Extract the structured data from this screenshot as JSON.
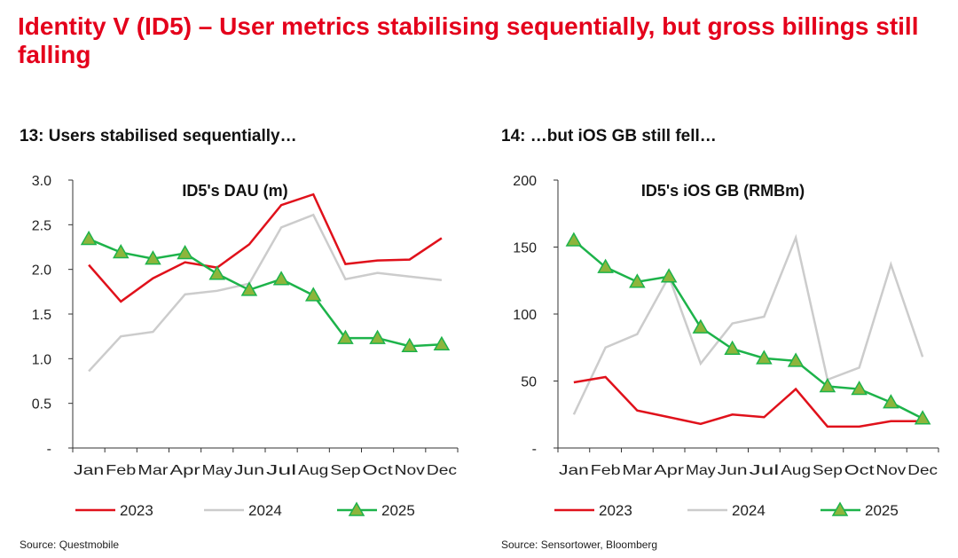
{
  "title": "Identity V (ID5) – User metrics stabilising sequentially, but gross billings still falling",
  "colors": {
    "2023": "#e0111b",
    "2024": "#cccccc",
    "2025": "#1db34a",
    "marker": "#8db53c"
  },
  "chart_data": [
    {
      "type": "line",
      "subtitle": "13: Users stabilised sequentially…",
      "title": "ID5's DAU (m)",
      "source": "Source: Questmobile",
      "categories": [
        "Jan",
        "Feb",
        "Mar",
        "Apr",
        "May",
        "Jun",
        "Jul",
        "Aug",
        "Sep",
        "Oct",
        "Nov",
        "Dec"
      ],
      "ylim": [
        0,
        3
      ],
      "yticks": [
        "-",
        "0.5",
        "1.0",
        "1.5",
        "2.0",
        "2.5",
        "3.0"
      ],
      "series": [
        {
          "name": "2023",
          "values": [
            2.05,
            1.64,
            1.9,
            2.08,
            2.02,
            2.28,
            2.72,
            2.84,
            2.06,
            2.1,
            2.11,
            2.35
          ]
        },
        {
          "name": "2024",
          "values": [
            0.86,
            1.25,
            1.3,
            1.72,
            1.76,
            1.84,
            2.47,
            2.61,
            1.89,
            1.96,
            1.92,
            1.88
          ]
        },
        {
          "name": "2025",
          "values": [
            2.34,
            2.19,
            2.12,
            2.18,
            1.95,
            1.77,
            1.89,
            1.71,
            1.23,
            1.23,
            1.14,
            1.16
          ]
        }
      ]
    },
    {
      "type": "line",
      "subtitle": "14: …but iOS GB still fell…",
      "title": "ID5's iOS GB (RMBm)",
      "source": "Source: Sensortower, Bloomberg",
      "categories": [
        "Jan",
        "Feb",
        "Mar",
        "Apr",
        "May",
        "Jun",
        "Jul",
        "Aug",
        "Sep",
        "Oct",
        "Nov",
        "Dec"
      ],
      "ylim": [
        0,
        200
      ],
      "yticks": [
        "-",
        "50",
        "100",
        "150",
        "200"
      ],
      "series": [
        {
          "name": "2023",
          "values": [
            49,
            53,
            28,
            23,
            18,
            25,
            23,
            44,
            16,
            16,
            20,
            20
          ]
        },
        {
          "name": "2024",
          "values": [
            25,
            75,
            85,
            128,
            63,
            93,
            98,
            157,
            51,
            60,
            137,
            68
          ]
        },
        {
          "name": "2025",
          "values": [
            155,
            135,
            124,
            128,
            90,
            74,
            67,
            65,
            46,
            44,
            34,
            22
          ]
        }
      ]
    }
  ]
}
